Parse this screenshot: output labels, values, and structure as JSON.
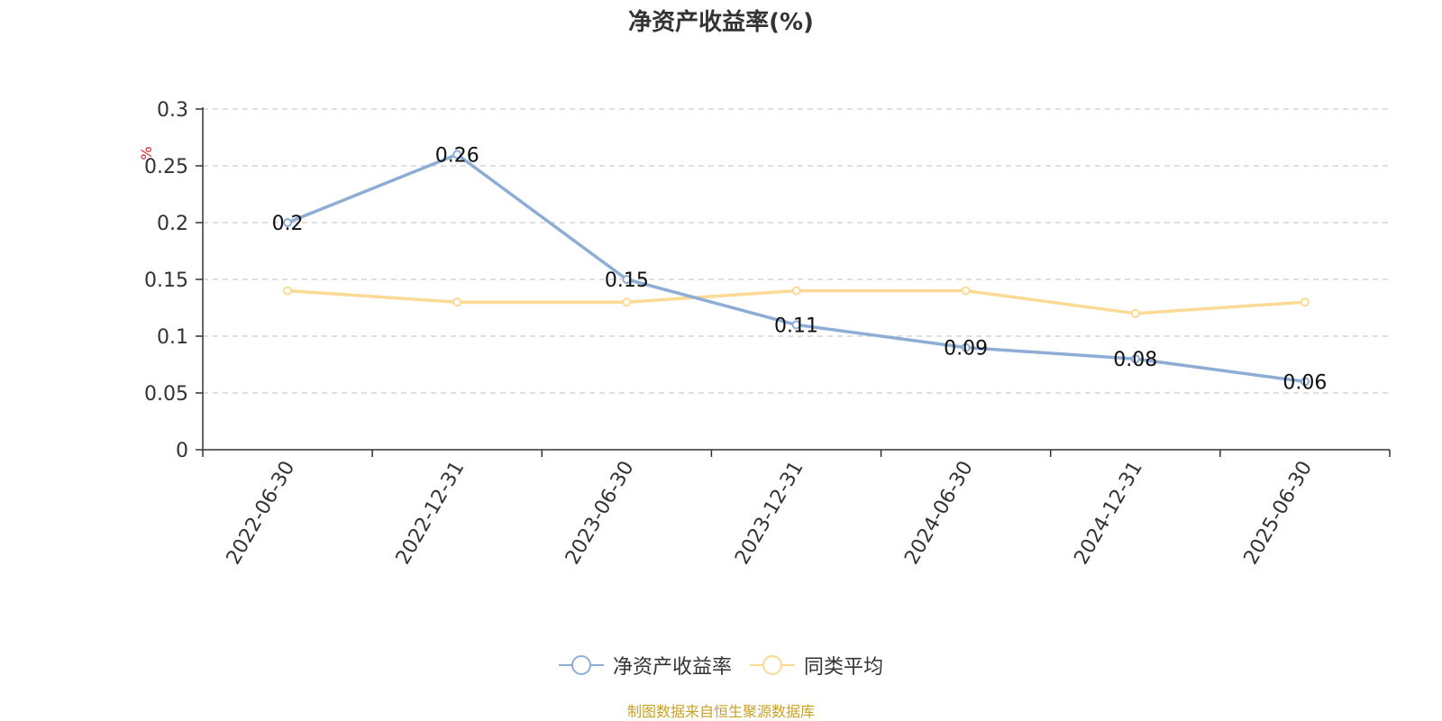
{
  "chart_data": {
    "type": "line",
    "title": "净资产收益率(%)",
    "ylabel": "%",
    "ylim": [
      0,
      0.3
    ],
    "yticks": [
      "0",
      "0.05",
      "0.1",
      "0.15",
      "0.2",
      "0.25",
      "0.3"
    ],
    "categories": [
      "2022-06-30",
      "2022-12-31",
      "2023-06-30",
      "2023-12-31",
      "2024-06-30",
      "2024-12-31",
      "2025-06-30"
    ],
    "grid": true,
    "legend_position": "bottom",
    "series": [
      {
        "name": "净资产收益率",
        "color": "#8eadd6",
        "values": [
          0.2,
          0.26,
          0.15,
          0.11,
          0.09,
          0.08,
          0.06
        ],
        "labels": [
          "0.2",
          "0.26",
          "0.15",
          "0.11",
          "0.09",
          "0.08",
          "0.06"
        ],
        "show_labels": true
      },
      {
        "name": "同类平均",
        "color": "#fcd994",
        "values": [
          0.14,
          0.13,
          0.13,
          0.14,
          0.14,
          0.12,
          0.13
        ],
        "show_labels": false
      }
    ]
  },
  "source": "制图数据来自恒生聚源数据库"
}
